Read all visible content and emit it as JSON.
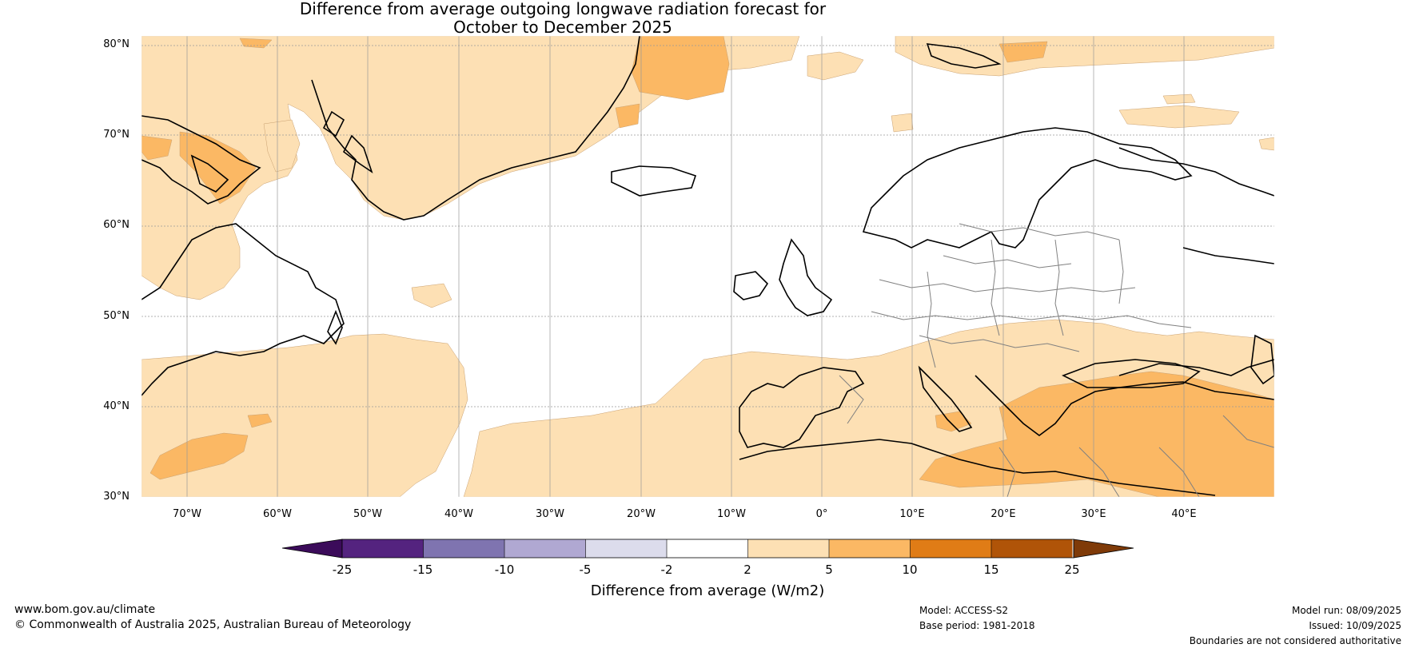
{
  "title": {
    "line1": "Difference from average outgoing longwave radiation forecast for",
    "line2": "October to December 2025"
  },
  "map": {
    "lat_labels": [
      "80°N",
      "70°N",
      "60°N",
      "50°N",
      "40°N",
      "30°N"
    ],
    "lon_labels": [
      "70°W",
      "60°W",
      "50°W",
      "40°W",
      "30°W",
      "20°W",
      "10°W",
      "0°",
      "10°E",
      "20°E",
      "30°E",
      "40°E"
    ],
    "colors": {
      "ocean_land_neutral": "#ffffff",
      "anomaly_2_5": "#fde0b4",
      "anomaly_5_10": "#fbb864",
      "coastline": "#000000",
      "borders": "#808080",
      "gridlines": "#999999"
    }
  },
  "colorbar": {
    "ticks": [
      "-25",
      "-15",
      "-10",
      "-5",
      "-2",
      "2",
      "5",
      "10",
      "15",
      "25"
    ],
    "colors": [
      "#3b0b5a",
      "#54237f",
      "#7f74b0",
      "#b0a8d2",
      "#dcdcec",
      "#ffffff",
      "#fde0b4",
      "#fbb864",
      "#e07c16",
      "#b05408",
      "#7f3a08"
    ],
    "label": "Difference from average (W/m2)"
  },
  "footer": {
    "website": "www.bom.gov.au/climate",
    "copyright": "© Commonwealth of Australia 2025, Australian Bureau of Meteorology",
    "model": "Model: ACCESS-S2",
    "base_period": "Base period: 1981-2018",
    "model_run": "Model run: 08/09/2025",
    "issued": "Issued: 10/09/2025",
    "disclaimer": "Boundaries are not considered authoritative"
  }
}
